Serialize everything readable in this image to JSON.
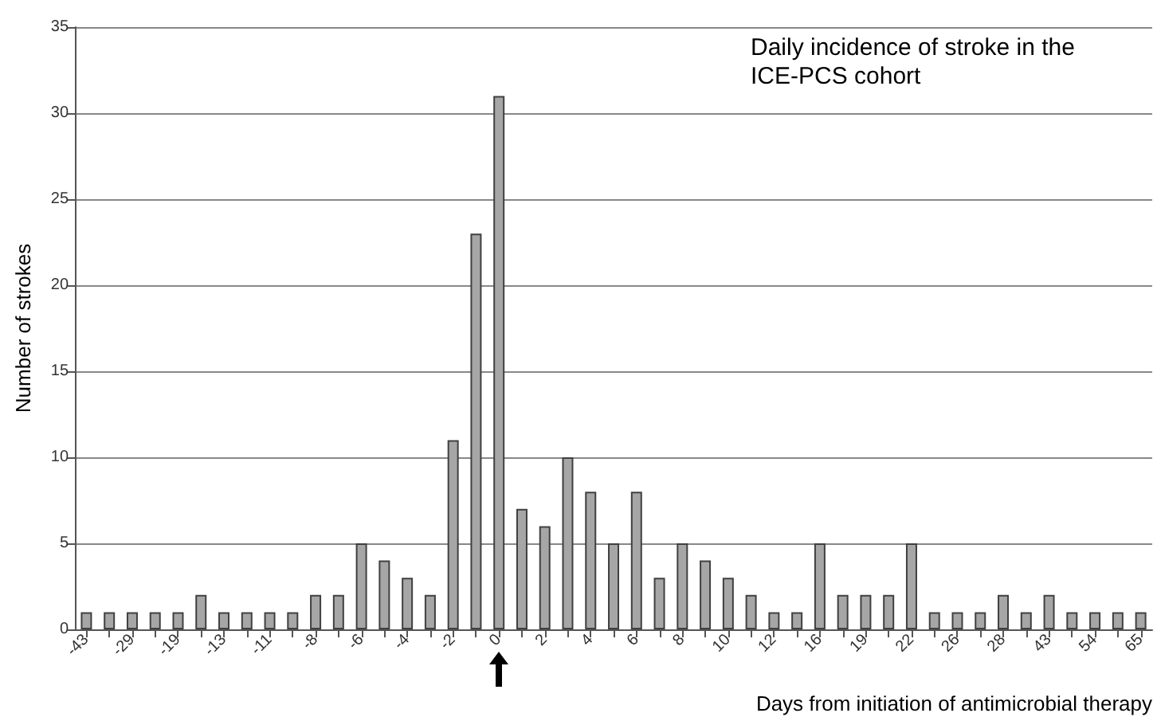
{
  "chart_data": {
    "type": "bar",
    "title": "Daily incidence of stroke in the ICE-PCS cohort",
    "xlabel": "Days from initiation of antimicrobial therapy",
    "ylabel": "Number of strokes",
    "categories": [
      "-43",
      null,
      "-29",
      null,
      "-19",
      null,
      "-13",
      null,
      "-11",
      null,
      "-8",
      null,
      "-6",
      null,
      "-4",
      null,
      "-2",
      null,
      "0",
      null,
      "2",
      null,
      "4",
      null,
      "6",
      null,
      "8",
      null,
      "10",
      null,
      "12",
      null,
      "16",
      null,
      "19",
      null,
      "22",
      null,
      "26",
      null,
      "28",
      null,
      "43",
      null,
      "54",
      null,
      "65"
    ],
    "values": [
      1,
      1,
      1,
      1,
      1,
      2,
      1,
      1,
      1,
      1,
      2,
      2,
      5,
      4,
      3,
      2,
      11,
      23,
      31,
      7,
      6,
      10,
      8,
      5,
      8,
      3,
      5,
      4,
      3,
      2,
      1,
      1,
      5,
      2,
      2,
      2,
      5,
      1,
      1,
      1,
      2,
      1,
      2,
      1,
      1,
      1,
      1
    ],
    "color": "#a6a6a6",
    "ylim": [
      0,
      35
    ],
    "yticks": [
      0,
      5,
      10,
      15,
      20,
      25,
      30,
      35
    ],
    "grid": "y"
  }
}
